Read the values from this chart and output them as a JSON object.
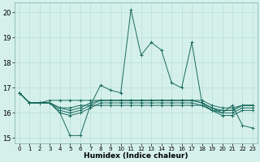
{
  "xlabel": "Humidex (Indice chaleur)",
  "bg_color": "#d5f0eb",
  "grid_color": "#b8ddd8",
  "line_color": "#1a6b5e",
  "xlim": [
    -0.5,
    23.5
  ],
  "ylim": [
    14.8,
    20.4
  ],
  "yticks": [
    15,
    16,
    17,
    18,
    19,
    20
  ],
  "xticks": [
    0,
    1,
    2,
    3,
    4,
    5,
    6,
    7,
    8,
    9,
    10,
    11,
    12,
    13,
    14,
    15,
    16,
    17,
    18,
    19,
    20,
    21,
    22,
    23
  ],
  "series": [
    [
      16.8,
      16.4,
      16.4,
      16.4,
      16.0,
      15.1,
      15.1,
      16.3,
      17.1,
      16.9,
      16.8,
      20.1,
      18.3,
      18.8,
      18.5,
      17.2,
      17.0,
      18.8,
      16.4,
      16.1,
      16.0,
      16.3,
      15.5,
      15.4
    ],
    [
      16.8,
      16.4,
      16.4,
      16.4,
      16.2,
      16.2,
      16.3,
      16.3,
      16.3,
      16.3,
      16.3,
      16.3,
      16.3,
      16.3,
      16.3,
      16.3,
      16.3,
      16.3,
      16.3,
      16.1,
      16.1,
      16.1,
      16.3,
      16.3
    ],
    [
      16.8,
      16.4,
      16.4,
      16.5,
      16.5,
      16.5,
      16.5,
      16.5,
      16.5,
      16.5,
      16.5,
      16.5,
      16.5,
      16.5,
      16.5,
      16.5,
      16.5,
      16.5,
      16.5,
      16.3,
      16.2,
      16.2,
      16.3,
      16.3
    ],
    [
      16.8,
      16.4,
      16.4,
      16.4,
      16.2,
      16.1,
      16.2,
      16.4,
      16.5,
      16.5,
      16.5,
      16.5,
      16.5,
      16.5,
      16.5,
      16.5,
      16.5,
      16.5,
      16.4,
      16.2,
      16.1,
      16.1,
      16.3,
      16.3
    ],
    [
      16.8,
      16.4,
      16.4,
      16.4,
      16.1,
      16.0,
      16.1,
      16.3,
      16.5,
      16.5,
      16.5,
      16.5,
      16.5,
      16.5,
      16.5,
      16.5,
      16.5,
      16.5,
      16.4,
      16.2,
      16.0,
      16.0,
      16.2,
      16.2
    ],
    [
      16.8,
      16.4,
      16.4,
      16.4,
      16.0,
      15.9,
      16.0,
      16.2,
      16.4,
      16.4,
      16.4,
      16.4,
      16.4,
      16.4,
      16.4,
      16.4,
      16.4,
      16.4,
      16.3,
      16.1,
      15.9,
      15.9,
      16.1,
      16.1
    ]
  ]
}
